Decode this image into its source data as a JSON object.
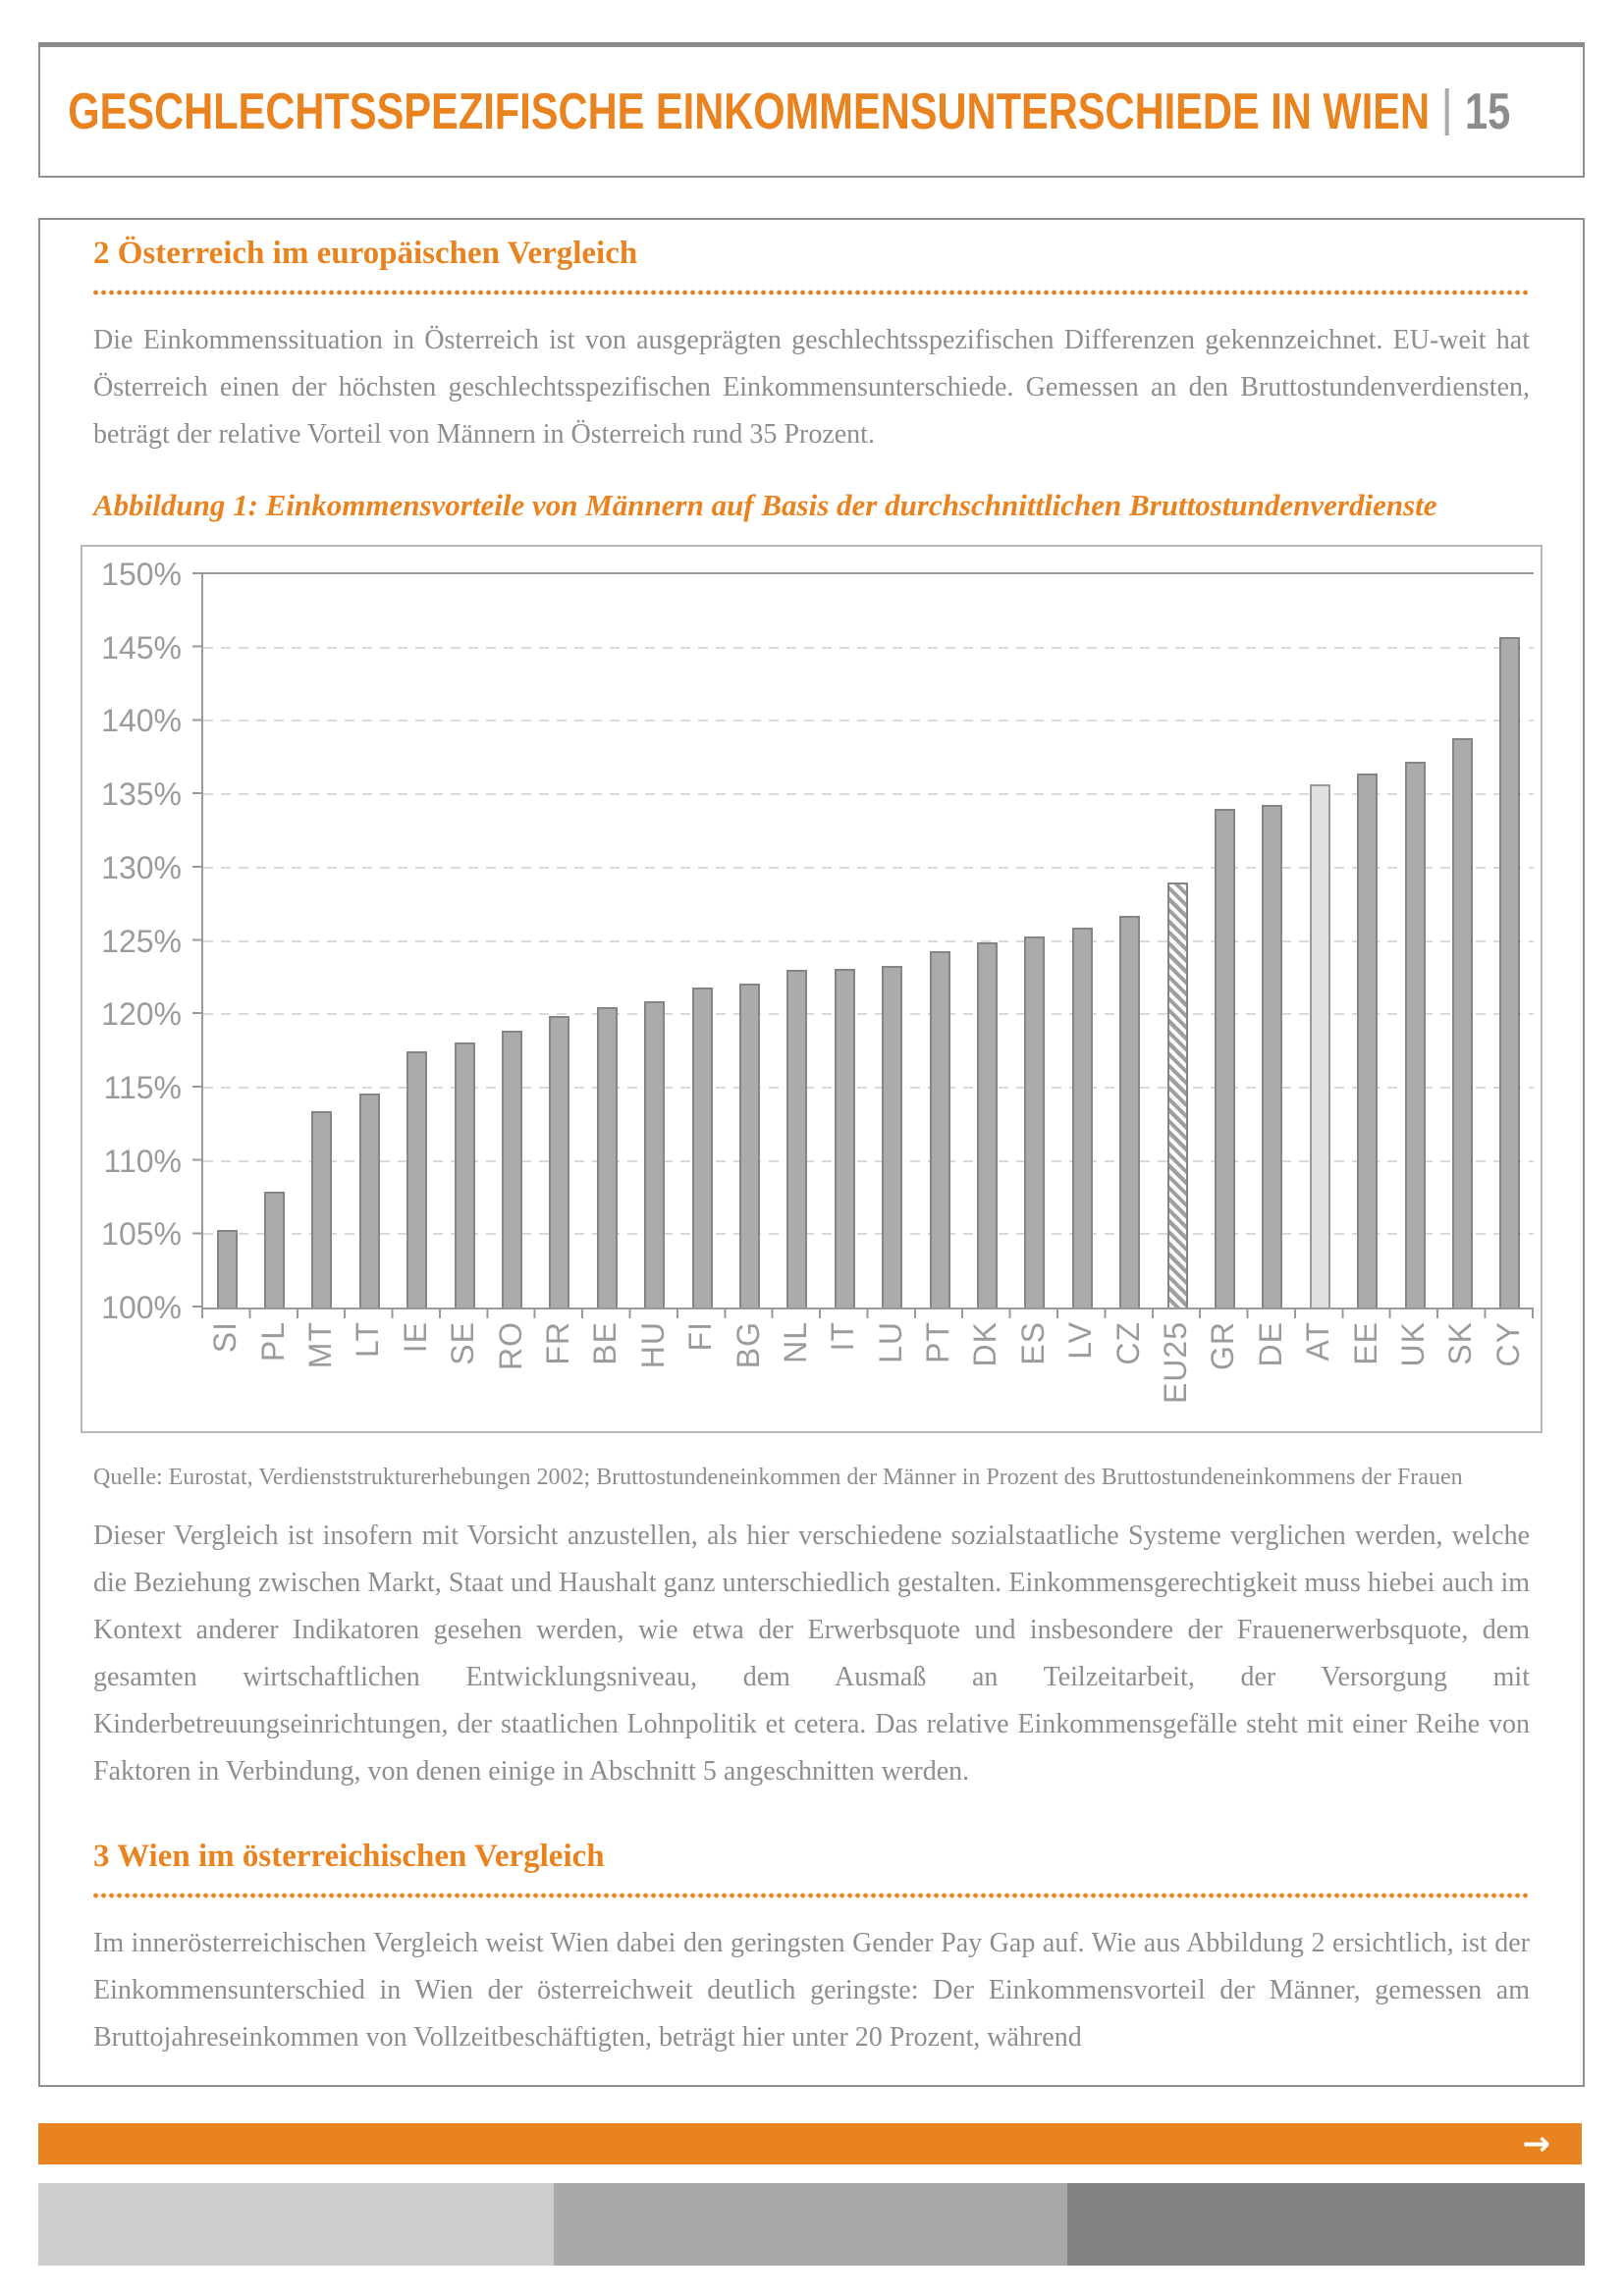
{
  "header": {
    "title": "GESCHLECHTSSPEZIFISCHE EINKOMMENSUNTERSCHIEDE IN WIEN",
    "page_number": "15"
  },
  "section_europe": {
    "heading": "2 Österreich im europäischen Vergleich",
    "paragraph": "Die Einkommenssituation in Österreich ist von ausgeprägten geschlechtsspezifischen Differenzen gekennzeichnet. EU-weit hat Österreich einen der höchsten geschlechtsspezifischen Einkommensunterschiede. Gemessen an den Bruttostundenverdiensten, beträgt der relative Vorteil von Männern in Österreich rund 35 Prozent.",
    "discussion": "Dieser Vergleich ist insofern mit Vorsicht anzustellen, als hier verschiedene sozialstaatliche Systeme verglichen werden, welche die Beziehung zwischen Markt, Staat und Haushalt ganz unterschiedlich gestalten. Einkommensgerechtigkeit muss hiebei auch im Kontext anderer Indikatoren gesehen werden, wie etwa der Erwerbsquote und insbesondere der Frauenerwerbsquote, dem gesamten wirtschaftlichen Entwicklungsniveau, dem Ausmaß an Teilzeitarbeit, der Versorgung mit Kinderbetreuungseinrichtungen, der staatlichen Lohnpolitik et cetera. Das relative Einkommensgefälle steht mit einer Reihe von Faktoren in Verbindung, von denen einige in Abschnitt 5 angeschnitten werden."
  },
  "figure": {
    "caption": "Abbildung 1: Einkommensvorteile von Männern auf Basis der durchschnittlichen Bruttostundenverdienste",
    "source": "Quelle: Eurostat, Verdienststrukturerhebungen 2002; Bruttostundeneinkommen der Männer in Prozent des Bruttostundeneinkommens der Frauen"
  },
  "section_vienna": {
    "heading": "3 Wien im österreichischen Vergleich",
    "paragraph": "Im innerösterreichischen Vergleich weist Wien dabei den geringsten Gender Pay Gap auf. Wie aus Abbildung 2 ersichtlich, ist der Einkommensunterschied in Wien der österreichweit deutlich geringste: Der Einkommensvorteil der Männer, gemessen am Bruttojahreseinkommen von Vollzeitbeschäftigten, beträgt hier unter 20 Prozent, während"
  },
  "footer": {
    "arrow": "→"
  },
  "colors": {
    "accent_orange": "#e8831f",
    "body_text": "#8d8d8d",
    "bar_fill": "#ababab",
    "bar_border": "#858585",
    "bar_light_fill": "#e0e0e0",
    "footer_block_light": "#cecece",
    "footer_block_mid": "#a9a9a9",
    "footer_block_dark": "#838383"
  },
  "chart_data": {
    "type": "bar",
    "title": "Einkommensvorteile von Männern auf Basis der durchschnittlichen Bruttostundenverdienste",
    "categories": [
      "SI",
      "PL",
      "MT",
      "LT",
      "IE",
      "SE",
      "RO",
      "FR",
      "BE",
      "HU",
      "FI",
      "BG",
      "NL",
      "IT",
      "LU",
      "PT",
      "DK",
      "ES",
      "LV",
      "CZ",
      "EU25",
      "GR",
      "DE",
      "AT",
      "EE",
      "UK",
      "SK",
      "CY"
    ],
    "values": [
      105.3,
      107.9,
      113.4,
      114.6,
      117.5,
      118.1,
      118.9,
      119.9,
      120.5,
      120.9,
      121.8,
      122.1,
      123.0,
      123.1,
      123.3,
      124.3,
      124.9,
      125.3,
      125.9,
      126.7,
      129.0,
      134.0,
      134.3,
      135.7,
      136.4,
      137.2,
      138.8,
      145.7
    ],
    "unit": "%",
    "ylim": [
      100,
      150
    ],
    "yticks": [
      100,
      105,
      110,
      115,
      120,
      125,
      130,
      135,
      140,
      145,
      150
    ],
    "ytick_format": "percent",
    "grid": "dashed-horizontal",
    "legend": "none",
    "bar_styles": {
      "EU25": "hatched",
      "AT": "light"
    },
    "xlabel_rotation": -90
  }
}
